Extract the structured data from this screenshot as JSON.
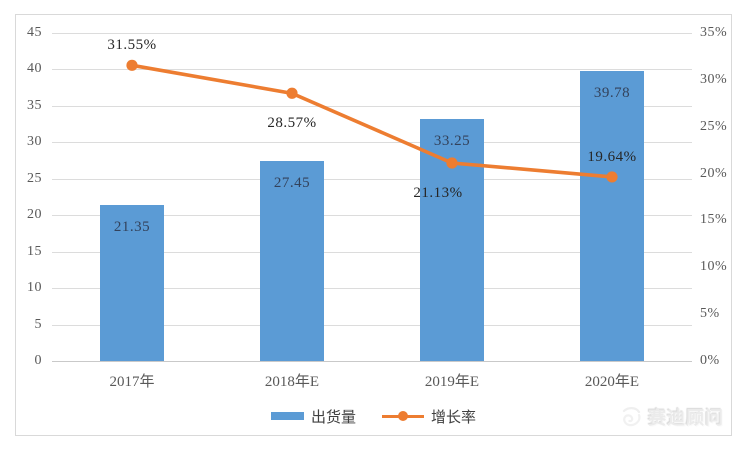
{
  "chart_data": {
    "type": "combo",
    "categories": [
      "2017年",
      "2018年E",
      "2019年E",
      "2020年E"
    ],
    "series": [
      {
        "name": "出货量",
        "type": "bar",
        "axis": "left",
        "values": [
          21.35,
          27.45,
          33.25,
          39.78
        ],
        "data_labels": [
          "21.35",
          "27.45",
          "33.25",
          "39.78"
        ],
        "color": "#5b9bd5"
      },
      {
        "name": "增长率",
        "type": "line",
        "axis": "right",
        "values": [
          31.55,
          28.57,
          21.13,
          19.64
        ],
        "data_labels": [
          "31.55%",
          "28.57%",
          "21.13%",
          "19.64%"
        ],
        "label_positions": [
          "above",
          "below",
          "below",
          "above"
        ],
        "color": "#ed7d31"
      }
    ],
    "left_axis": {
      "min": 0,
      "max": 45,
      "step": 5,
      "ticks": [
        "0",
        "5",
        "10",
        "15",
        "20",
        "25",
        "30",
        "35",
        "40",
        "45"
      ]
    },
    "right_axis": {
      "min": 0,
      "max": 35,
      "step": 5,
      "ticks": [
        "0%",
        "5%",
        "10%",
        "15%",
        "20%",
        "25%",
        "30%",
        "35%"
      ]
    },
    "grid": true,
    "legend_position": "bottom",
    "title": ""
  },
  "watermark": {
    "text": "赛迪顾问"
  },
  "colors": {
    "bar": "#5b9bd5",
    "line": "#ed7d31",
    "grid": "#dcdcdc",
    "axis_text": "#595959",
    "bar_label_text": "#33425b",
    "line_label_text": "#262626",
    "frame_border": "#d9d9d9"
  }
}
